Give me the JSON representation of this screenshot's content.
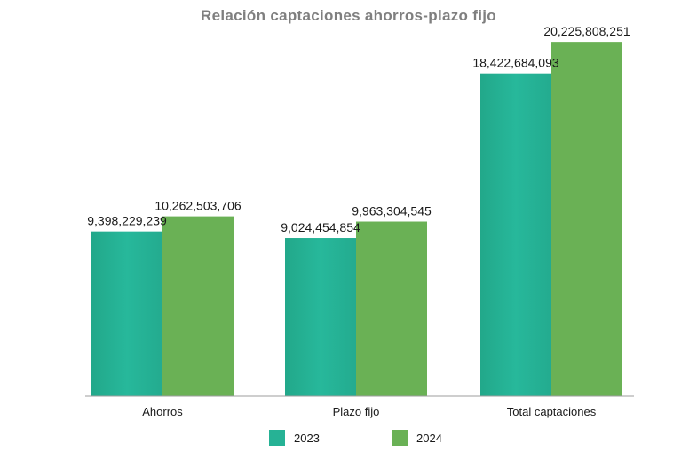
{
  "chart_data": {
    "type": "bar",
    "title": "Relación captaciones ahorros-plazo fijo",
    "categories": [
      "Ahorros",
      "Plazo fijo",
      "Total captaciones"
    ],
    "series": [
      {
        "name": "2023",
        "color": "#26b295",
        "values": [
          9398229239,
          9024454854,
          18422684093
        ],
        "labels": [
          "9,398,229,239",
          "9,024,454,854",
          "18,422,684,093"
        ]
      },
      {
        "name": "2024",
        "color": "#6ab155",
        "values": [
          10262503706,
          9963304545,
          20225808251
        ],
        "labels": [
          "10,262,503,706",
          "9,963,304,545",
          "20,225,808,251"
        ]
      }
    ],
    "ylim": [
      0,
      21500000000
    ],
    "grid": false,
    "legend_position": "bottom"
  }
}
